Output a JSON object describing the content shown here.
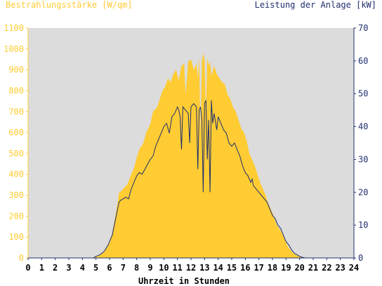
{
  "chart_data": {
    "type": "area",
    "left_axis_title": "Bestrahlungsstärke [W/qm]",
    "right_axis_title": "Leistung der Anlage [kW]",
    "xlabel": "Uhrzeit in Stunden",
    "xlim": [
      0,
      24
    ],
    "ylim_left": [
      0,
      1100
    ],
    "ylim_right": [
      0,
      70
    ],
    "x_ticks": [
      "0",
      "1",
      "2",
      "3",
      "4",
      "5",
      "6",
      "7",
      "8",
      "9",
      "10",
      "11",
      "12",
      "13",
      "14",
      "15",
      "16",
      "17",
      "18",
      "19",
      "20",
      "21",
      "22",
      "23",
      "24"
    ],
    "y_left_ticks": [
      "0",
      "100",
      "200",
      "300",
      "400",
      "500",
      "600",
      "700",
      "800",
      "900",
      "1000",
      "1100"
    ],
    "y_right_ticks": [
      "0",
      "10",
      "20",
      "30",
      "40",
      "50",
      "60",
      "70"
    ],
    "grid": false,
    "colors": {
      "irradiance": "#ffcc33",
      "power": "#1f2f6e",
      "plot_bg": "#dcdcdc",
      "left_axis": "#ffcc33",
      "right_axis": "#1f2f6e"
    },
    "series": [
      {
        "name": "Bestrahlungsstärke [W/qm]",
        "axis": "left",
        "x": [
          0,
          4.6,
          5.0,
          5.3,
          5.6,
          5.9,
          6.2,
          6.5,
          6.7,
          7.0,
          7.3,
          7.6,
          7.8,
          8.0,
          8.2,
          8.5,
          8.7,
          9.0,
          9.2,
          9.5,
          9.7,
          9.9,
          10.1,
          10.3,
          10.5,
          10.7,
          10.9,
          11.1,
          11.3,
          11.5,
          11.6,
          11.8,
          12.0,
          12.2,
          12.4,
          12.5,
          12.6,
          12.7,
          12.8,
          12.9,
          13.0,
          13.1,
          13.2,
          13.3,
          13.4,
          13.5,
          13.7,
          13.9,
          14.1,
          14.3,
          14.5,
          14.7,
          14.9,
          15.1,
          15.3,
          15.5,
          15.7,
          15.9,
          16.1,
          16.3,
          16.5,
          16.7,
          16.9,
          17.1,
          17.3,
          17.5,
          17.7,
          17.9,
          18.1,
          18.3,
          18.5,
          18.7,
          18.9,
          19.1,
          19.3,
          19.5,
          19.7,
          19.9,
          20.2,
          20.5,
          20.8,
          24
        ],
        "values": [
          0,
          0,
          5,
          15,
          30,
          60,
          120,
          230,
          310,
          330,
          350,
          400,
          430,
          480,
          520,
          550,
          600,
          640,
          700,
          720,
          760,
          800,
          820,
          860,
          840,
          880,
          900,
          850,
          920,
          930,
          780,
          940,
          950,
          900,
          930,
          860,
          960,
          600,
          940,
          980,
          950,
          700,
          960,
          920,
          940,
          870,
          920,
          880,
          860,
          840,
          830,
          780,
          760,
          720,
          700,
          660,
          620,
          600,
          560,
          500,
          470,
          440,
          400,
          360,
          330,
          300,
          260,
          230,
          200,
          160,
          140,
          120,
          90,
          60,
          40,
          25,
          15,
          10,
          4,
          2,
          0,
          0
        ]
      },
      {
        "name": "Leistung der Anlage [kW]",
        "axis": "right",
        "x": [
          0,
          4.8,
          5.0,
          5.3,
          5.6,
          5.9,
          6.2,
          6.4,
          6.6,
          6.7,
          6.8,
          7.0,
          7.2,
          7.4,
          7.6,
          7.8,
          8.0,
          8.2,
          8.4,
          8.6,
          8.8,
          9.0,
          9.2,
          9.4,
          9.6,
          9.8,
          10.0,
          10.2,
          10.4,
          10.6,
          10.8,
          11.0,
          11.1,
          11.2,
          11.3,
          11.4,
          11.6,
          11.8,
          11.9,
          12.0,
          12.2,
          12.4,
          12.5,
          12.6,
          12.7,
          12.8,
          12.9,
          13.0,
          13.1,
          13.2,
          13.3,
          13.4,
          13.5,
          13.6,
          13.7,
          13.9,
          14.0,
          14.2,
          14.4,
          14.6,
          14.8,
          15.0,
          15.2,
          15.4,
          15.6,
          15.8,
          16.0,
          16.2,
          16.4,
          16.5,
          16.6,
          16.8,
          17.0,
          17.2,
          17.4,
          17.6,
          17.8,
          18.0,
          18.2,
          18.4,
          18.6,
          18.8,
          19.0,
          19.2,
          19.4,
          19.6,
          19.8,
          20.0,
          20.2,
          20.4,
          24
        ],
        "values": [
          0,
          0,
          0.5,
          1,
          2,
          4,
          7,
          11,
          15,
          17,
          17.5,
          18,
          18.5,
          18,
          21,
          23,
          25,
          26,
          25.5,
          27,
          28.5,
          30,
          31,
          34,
          36,
          38,
          40,
          41,
          38,
          43,
          44,
          46,
          45,
          43,
          33,
          46,
          45,
          44,
          35,
          46,
          47,
          46,
          27,
          45,
          46,
          42,
          20,
          47,
          48,
          30,
          42,
          20,
          48,
          41,
          44,
          39,
          43,
          41,
          39,
          38,
          35,
          34,
          35,
          33,
          31,
          28,
          26,
          25,
          23,
          24,
          22,
          21,
          20,
          19,
          18,
          17,
          15,
          13,
          12,
          10,
          9,
          7,
          5,
          4,
          2.5,
          1.5,
          1,
          0.5,
          0.2,
          0,
          0
        ]
      }
    ]
  }
}
